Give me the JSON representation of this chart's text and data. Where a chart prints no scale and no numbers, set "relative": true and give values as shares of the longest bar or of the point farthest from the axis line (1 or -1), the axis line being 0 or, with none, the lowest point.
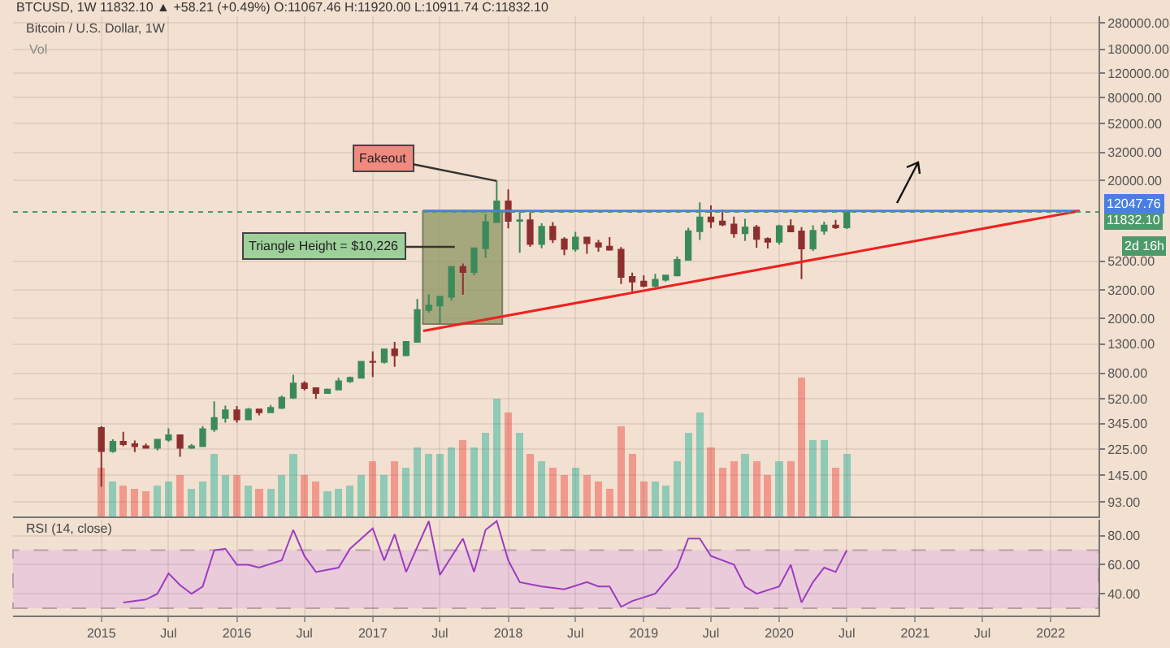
{
  "chart_data": [
    {
      "type": "candlestick",
      "title": "Bitcoin / U.S. Dollar, 1W",
      "log": true,
      "grid": true,
      "tick_labels": "y",
      "xlim": [
        "2014-05-08",
        "2022-05-10"
      ],
      "xticks": [
        {
          "value": "2015-01-01",
          "label": null
        },
        {
          "value": "2015-07-01",
          "label": null
        },
        {
          "value": "2016-01-01",
          "label": null
        },
        {
          "value": "2016-07-01",
          "label": null
        },
        {
          "value": "2017-01-01",
          "label": null
        },
        {
          "value": "2017-07-01",
          "label": null
        },
        {
          "value": "2018-01-01",
          "label": null
        },
        {
          "value": "2018-07-01",
          "label": null
        },
        {
          "value": "2019-01-01",
          "label": null
        },
        {
          "value": "2019-07-01",
          "label": null
        },
        {
          "value": "2020-01-01",
          "label": null
        },
        {
          "value": "2020-07-01",
          "label": null
        },
        {
          "value": "2021-01-01",
          "label": null
        },
        {
          "value": "2021-07-01",
          "label": null
        },
        {
          "value": "2022-01-01",
          "label": null
        }
      ],
      "ylim": [
        73,
        312000
      ],
      "yticks": [
        {
          "value": 93,
          "label": "93.00"
        },
        {
          "value": 145,
          "label": "145.00"
        },
        {
          "value": 225,
          "label": "225.00"
        },
        {
          "value": 345,
          "label": "345.00"
        },
        {
          "value": 520,
          "label": "520.00"
        },
        {
          "value": 800,
          "label": "800.00"
        },
        {
          "value": 1300,
          "label": "1300.00"
        },
        {
          "value": 2000,
          "label": "2000.00"
        },
        {
          "value": 3200,
          "label": "3200.00"
        },
        {
          "value": 5200,
          "label": "5200.00"
        },
        {
          "value": 20000,
          "label": "20000.00"
        },
        {
          "value": 32000,
          "label": "32000.00"
        },
        {
          "value": 52000,
          "label": "52000.00"
        },
        {
          "value": 80000,
          "label": "80000.00"
        },
        {
          "value": 120000,
          "label": "120000.00"
        },
        {
          "value": 180000,
          "label": "180000.00"
        },
        {
          "value": 280000,
          "label": "280000.00"
        }
      ],
      "x": [
        "2015-01",
        "2015-02",
        "2015-03",
        "2015-04",
        "2015-05",
        "2015-06",
        "2015-07",
        "2015-08",
        "2015-09",
        "2015-10",
        "2015-11",
        "2015-12",
        "2016-01",
        "2016-02",
        "2016-03",
        "2016-04",
        "2016-05",
        "2016-06",
        "2016-07",
        "2016-08",
        "2016-09",
        "2016-10",
        "2016-11",
        "2016-12",
        "2017-01",
        "2017-02",
        "2017-03",
        "2017-04",
        "2017-05",
        "2017-06",
        "2017-07",
        "2017-08",
        "2017-09",
        "2017-10",
        "2017-11",
        "2017-12",
        "2018-01",
        "2018-02",
        "2018-03",
        "2018-04",
        "2018-05",
        "2018-06",
        "2018-07",
        "2018-08",
        "2018-09",
        "2018-10",
        "2018-11",
        "2018-12",
        "2019-01",
        "2019-02",
        "2019-03",
        "2019-04",
        "2019-05",
        "2019-06",
        "2019-07",
        "2019-08",
        "2019-09",
        "2019-10",
        "2019-11",
        "2019-12",
        "2020-01",
        "2020-02",
        "2020-03",
        "2020-04",
        "2020-05",
        "2020-06",
        "2020-07"
      ],
      "ohlc": [
        [
          320,
          330,
          120,
          218
        ],
        [
          218,
          265,
          212,
          254
        ],
        [
          254,
          300,
          236,
          244
        ],
        [
          244,
          260,
          214,
          236
        ],
        [
          236,
          247,
          228,
          230
        ],
        [
          230,
          267,
          220,
          263
        ],
        [
          263,
          318,
          254,
          284
        ],
        [
          284,
          285,
          198,
          230
        ],
        [
          230,
          245,
          226,
          236
        ],
        [
          236,
          330,
          235,
          314
        ],
        [
          314,
          500,
          300,
          378
        ],
        [
          378,
          465,
          350,
          430
        ],
        [
          430,
          462,
          350,
          369
        ],
        [
          369,
          448,
          366,
          437
        ],
        [
          437,
          440,
          395,
          416
        ],
        [
          416,
          470,
          412,
          448
        ],
        [
          448,
          550,
          440,
          531
        ],
        [
          531,
          780,
          520,
          673
        ],
        [
          673,
          700,
          600,
          624
        ],
        [
          624,
          630,
          520,
          575
        ],
        [
          575,
          620,
          570,
          608
        ],
        [
          608,
          740,
          605,
          700
        ],
        [
          700,
          755,
          680,
          742
        ],
        [
          742,
          975,
          740,
          968
        ],
        [
          968,
          1150,
          750,
          965
        ],
        [
          965,
          1200,
          940,
          1190
        ],
        [
          1190,
          1350,
          890,
          1080
        ],
        [
          1080,
          1350,
          1060,
          1350
        ],
        [
          1350,
          2760,
          1350,
          2300
        ],
        [
          2300,
          2990,
          2200,
          2480
        ],
        [
          2480,
          2900,
          1830,
          2870
        ],
        [
          2870,
          4780,
          2700,
          4730
        ],
        [
          4730,
          5000,
          2970,
          4340
        ],
        [
          4340,
          6470,
          4110,
          6450
        ],
        [
          6450,
          11400,
          5500,
          10000
        ],
        [
          10000,
          19890,
          10000,
          14150
        ],
        [
          14150,
          17250,
          9000,
          10200
        ],
        [
          10200,
          11790,
          6000,
          10320
        ],
        [
          10320,
          11700,
          6600,
          6930
        ],
        [
          6930,
          9800,
          6450,
          9240
        ],
        [
          9240,
          9990,
          7050,
          7500
        ],
        [
          7500,
          7780,
          5750,
          6390
        ],
        [
          6390,
          8500,
          6100,
          7730
        ],
        [
          7730,
          7750,
          5880,
          7030
        ],
        [
          7030,
          7410,
          6100,
          6630
        ],
        [
          6630,
          7770,
          6200,
          6310
        ],
        [
          6310,
          6580,
          3550,
          4000
        ],
        [
          4000,
          4300,
          3120,
          3700
        ],
        [
          3700,
          4110,
          3360,
          3440
        ],
        [
          3440,
          4210,
          3360,
          3820
        ],
        [
          3820,
          4150,
          3700,
          4100
        ],
        [
          4100,
          5630,
          4070,
          5320
        ],
        [
          5320,
          9100,
          5320,
          8580
        ],
        [
          8580,
          13880,
          7430,
          10820
        ],
        [
          10820,
          13200,
          9060,
          10090
        ],
        [
          10090,
          12330,
          9330,
          9600
        ],
        [
          9600,
          10950,
          7710,
          8300
        ],
        [
          8300,
          10540,
          7300,
          9150
        ],
        [
          9150,
          9520,
          6520,
          7550
        ],
        [
          7550,
          7750,
          6430,
          7200
        ],
        [
          7200,
          9580,
          6870,
          9350
        ],
        [
          9350,
          10500,
          8450,
          8540
        ],
        [
          8540,
          9190,
          3850,
          6430
        ],
        [
          6430,
          9460,
          6150,
          8630
        ],
        [
          8630,
          10070,
          8110,
          9450
        ],
        [
          9450,
          10390,
          8900,
          9140
        ],
        [
          9140,
          11920,
          8900,
          11832.1
        ]
      ],
      "colors": [
        "#8e2f2f",
        "#3b8a5a",
        "#8e2f2f",
        "#8e2f2f",
        "#8e2f2f",
        "#3b8a5a",
        "#3b8a5a",
        "#8e2f2f",
        "#3b8a5a",
        "#3b8a5a",
        "#3b8a5a",
        "#3b8a5a",
        "#8e2f2f",
        "#3b8a5a",
        "#8e2f2f",
        "#3b8a5a",
        "#3b8a5a",
        "#3b8a5a",
        "#8e2f2f",
        "#8e2f2f",
        "#3b8a5a",
        "#3b8a5a",
        "#3b8a5a",
        "#3b8a5a",
        "#8e2f2f",
        "#3b8a5a",
        "#8e2f2f",
        "#3b8a5a",
        "#3b8a5a",
        "#3b8a5a",
        "#3b8a5a",
        "#3b8a5a",
        "#8e2f2f",
        "#3b8a5a",
        "#3b8a5a",
        "#3b8a5a",
        "#8e2f2f",
        "#3b8a5a",
        "#8e2f2f",
        "#3b8a5a",
        "#8e2f2f",
        "#8e2f2f",
        "#3b8a5a",
        "#8e2f2f",
        "#8e2f2f",
        "#8e2f2f",
        "#8e2f2f",
        "#8e2f2f",
        "#8e2f2f",
        "#3b8a5a",
        "#3b8a5a",
        "#3b8a5a",
        "#3b8a5a",
        "#3b8a5a",
        "#8e2f2f",
        "#8e2f2f",
        "#8e2f2f",
        "#3b8a5a",
        "#8e2f2f",
        "#8e2f2f",
        "#3b8a5a",
        "#8e2f2f",
        "#8e2f2f",
        "#3b8a5a",
        "#3b8a5a",
        "#8e2f2f",
        "#3b8a5a"
      ],
      "series": [
        {
          "type": "bar",
          "x": [
            "2017-08-31"
          ],
          "base": [
            1821
          ],
          "values": [
            10226.76
          ],
          "color": "#8a9660"
        },
        {
          "type": "line",
          "x": [
            "2017-05-17",
            "2022-03-20"
          ],
          "values": [
            12047.76,
            12047.76
          ],
          "color": "#4a7fe0"
        },
        {
          "type": "line",
          "x": [
            "2017-05-17",
            "2022-03-20"
          ],
          "values": [
            1620,
            12047.76
          ],
          "color": "#f02020"
        }
      ],
      "ref_lines": [
        {
          "axis": "y",
          "value": 11832.1,
          "label": "11832.10",
          "color": "#4c9a6a",
          "line_style": "dotted"
        }
      ],
      "annotations": [
        "BTCUSD, 1W 11832.10 ▲ +58.21 (+0.49%) O:11067.46 H:11920.00 L:10911.74 C:11832.10",
        "Vol",
        "2d 16h",
        {
          "text": "Fakeout",
          "x": "2017-12-01",
          "y": 19890
        },
        "Triangle Height = $10,226",
        "12047.76"
      ]
    },
    {
      "type": "bar",
      "relative": true,
      "tick_labels": false,
      "xlim": [
        "2014-05-08",
        "2022-05-10"
      ],
      "x": [
        "2015-01",
        "2015-02",
        "2015-03",
        "2015-04",
        "2015-05",
        "2015-06",
        "2015-07",
        "2015-08",
        "2015-09",
        "2015-10",
        "2015-11",
        "2015-12",
        "2016-01",
        "2016-02",
        "2016-03",
        "2016-04",
        "2016-05",
        "2016-06",
        "2016-07",
        "2016-08",
        "2016-09",
        "2016-10",
        "2016-11",
        "2016-12",
        "2017-01",
        "2017-02",
        "2017-03",
        "2017-04",
        "2017-05",
        "2017-06",
        "2017-07",
        "2017-08",
        "2017-09",
        "2017-10",
        "2017-11",
        "2017-12",
        "2018-01",
        "2018-02",
        "2018-03",
        "2018-04",
        "2018-05",
        "2018-06",
        "2018-07",
        "2018-08",
        "2018-09",
        "2018-10",
        "2018-11",
        "2018-12",
        "2019-01",
        "2019-02",
        "2019-03",
        "2019-04",
        "2019-05",
        "2019-06",
        "2019-07",
        "2019-08",
        "2019-09",
        "2019-10",
        "2019-11",
        "2019-12",
        "2020-01",
        "2020-02",
        "2020-03",
        "2020-04",
        "2020-05",
        "2020-06",
        "2020-07"
      ],
      "values": [
        0.35,
        0.25,
        0.22,
        0.2,
        0.18,
        0.22,
        0.25,
        0.3,
        0.2,
        0.25,
        0.45,
        0.3,
        0.3,
        0.22,
        0.2,
        0.2,
        0.3,
        0.45,
        0.3,
        0.25,
        0.18,
        0.2,
        0.22,
        0.3,
        0.4,
        0.3,
        0.4,
        0.35,
        0.5,
        0.45,
        0.45,
        0.5,
        0.55,
        0.5,
        0.6,
        0.85,
        0.75,
        0.6,
        0.45,
        0.4,
        0.35,
        0.3,
        0.35,
        0.3,
        0.25,
        0.2,
        0.65,
        0.45,
        0.25,
        0.25,
        0.22,
        0.4,
        0.6,
        0.75,
        0.5,
        0.35,
        0.4,
        0.45,
        0.4,
        0.3,
        0.4,
        0.4,
        1,
        0.55,
        0.55,
        0.35,
        0.45
      ],
      "colors": [
        "#f1998c",
        "#8fcab6",
        "#f1998c",
        "#f1998c",
        "#f1998c",
        "#8fcab6",
        "#8fcab6",
        "#f1998c",
        "#8fcab6",
        "#8fcab6",
        "#8fcab6",
        "#8fcab6",
        "#f1998c",
        "#8fcab6",
        "#f1998c",
        "#8fcab6",
        "#8fcab6",
        "#8fcab6",
        "#f1998c",
        "#f1998c",
        "#8fcab6",
        "#8fcab6",
        "#8fcab6",
        "#8fcab6",
        "#f1998c",
        "#8fcab6",
        "#f1998c",
        "#8fcab6",
        "#8fcab6",
        "#8fcab6",
        "#8fcab6",
        "#8fcab6",
        "#f1998c",
        "#8fcab6",
        "#8fcab6",
        "#8fcab6",
        "#f1998c",
        "#8fcab6",
        "#f1998c",
        "#8fcab6",
        "#f1998c",
        "#f1998c",
        "#8fcab6",
        "#f1998c",
        "#f1998c",
        "#f1998c",
        "#f1998c",
        "#f1998c",
        "#f1998c",
        "#8fcab6",
        "#8fcab6",
        "#8fcab6",
        "#8fcab6",
        "#8fcab6",
        "#f1998c",
        "#f1998c",
        "#f1998c",
        "#8fcab6",
        "#f1998c",
        "#f1998c",
        "#8fcab6",
        "#f1998c",
        "#f1998c",
        "#8fcab6",
        "#8fcab6",
        "#f1998c",
        "#8fcab6"
      ]
    },
    {
      "type": "line",
      "title": "RSI (14, close)",
      "grid": true,
      "color": "#9c3cc0",
      "xlim": [
        "2014-05-08",
        "2022-05-10"
      ],
      "xticks": [
        {
          "value": "2015-01-01",
          "label": "2015"
        },
        {
          "value": "2015-07-01",
          "label": "Jul"
        },
        {
          "value": "2016-01-01",
          "label": "2016"
        },
        {
          "value": "2016-07-01",
          "label": "Jul"
        },
        {
          "value": "2017-01-01",
          "label": "2017"
        },
        {
          "value": "2017-07-01",
          "label": "Jul"
        },
        {
          "value": "2018-01-01",
          "label": "2018"
        },
        {
          "value": "2018-07-01",
          "label": "Jul"
        },
        {
          "value": "2019-01-01",
          "label": "2019"
        },
        {
          "value": "2019-07-01",
          "label": "Jul"
        },
        {
          "value": "2020-01-01",
          "label": "2020"
        },
        {
          "value": "2020-07-01",
          "label": "Jul"
        },
        {
          "value": "2021-01-01",
          "label": "2021"
        },
        {
          "value": "2021-07-01",
          "label": "Jul"
        },
        {
          "value": "2022-01-01",
          "label": "2022"
        }
      ],
      "ylim": [
        25,
        91
      ],
      "yticks": [
        {
          "value": 40,
          "label": "40.00"
        },
        {
          "value": 60,
          "label": "60.00"
        },
        {
          "value": 80,
          "label": "80.00"
        }
      ],
      "x": [
        "2015-03",
        "2015-05",
        "2015-06",
        "2015-07",
        "2015-08",
        "2015-09",
        "2015-10",
        "2015-11",
        "2015-12",
        "2016-01",
        "2016-02",
        "2016-03",
        "2016-05",
        "2016-06",
        "2016-07",
        "2016-08",
        "2016-10",
        "2016-11",
        "2017-01",
        "2017-02",
        "2017-03",
        "2017-04",
        "2017-06",
        "2017-07",
        "2017-09",
        "2017-10",
        "2017-11",
        "2017-12",
        "2018-01",
        "2018-02",
        "2018-04",
        "2018-06",
        "2018-08",
        "2018-09",
        "2018-10",
        "2018-11",
        "2018-12",
        "2019-02",
        "2019-04",
        "2019-05",
        "2019-06",
        "2019-07",
        "2019-09",
        "2019-10",
        "2019-11",
        "2020-01",
        "2020-02",
        "2020-03",
        "2020-04",
        "2020-05",
        "2020-06",
        "2020-07"
      ],
      "values": [
        34,
        36,
        40,
        54,
        46,
        40,
        45,
        70,
        71,
        60,
        60,
        58,
        63,
        84,
        66,
        55,
        58,
        71,
        85,
        63,
        81,
        55,
        90,
        53,
        78,
        55,
        84,
        90,
        63,
        48,
        45,
        43,
        48,
        45,
        45,
        31,
        35,
        40,
        58,
        78,
        78,
        66,
        60,
        45,
        40,
        45,
        60,
        34,
        48,
        58,
        55,
        70
      ],
      "bands": [
        {
          "axis": "y",
          "from": 30,
          "to": 70,
          "color": "#e6c6dc"
        }
      ]
    }
  ]
}
